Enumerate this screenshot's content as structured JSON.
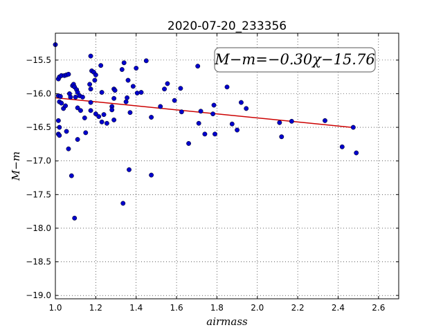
{
  "chart_data": {
    "type": "scatter",
    "title": "2020-07-20_233356",
    "xlabel": "airmass",
    "ylabel": "M−m",
    "xlim": [
      1.0,
      2.7
    ],
    "ylim": [
      -19.05,
      -15.1
    ],
    "x_ticks": [
      1.0,
      1.2,
      1.4,
      1.6,
      1.8,
      2.0,
      2.2,
      2.4,
      2.6
    ],
    "x_tick_labels": [
      "1.0",
      "1.2",
      "1.4",
      "1.6",
      "1.8",
      "2.0",
      "2.2",
      "2.4",
      "2.6"
    ],
    "y_ticks": [
      -15.5,
      -16.0,
      -16.5,
      -17.0,
      -17.5,
      -18.0,
      -18.5,
      -19.0
    ],
    "y_tick_labels": [
      "−15.5",
      "−16.0",
      "−16.5",
      "−17.0",
      "−17.5",
      "−18.0",
      "−18.5",
      "−19.0"
    ],
    "grid": true,
    "annotation": "M−m=−0.30χ−15.76",
    "colors": {
      "points": "#0000cc",
      "fit_line": "#cc0000"
    },
    "fit": {
      "slope": -0.3,
      "intercept": -15.76,
      "x_range": [
        1.0,
        2.47
      ]
    },
    "points": [
      [
        1.0,
        -15.27
      ],
      [
        1.015,
        -15.78
      ],
      [
        1.02,
        -15.75
      ],
      [
        1.03,
        -15.73
      ],
      [
        1.045,
        -15.73
      ],
      [
        1.055,
        -15.72
      ],
      [
        1.065,
        -15.71
      ],
      [
        1.015,
        -16.03
      ],
      [
        1.025,
        -16.04
      ],
      [
        1.02,
        -16.12
      ],
      [
        1.03,
        -16.14
      ],
      [
        1.04,
        -16.22
      ],
      [
        1.05,
        -16.18
      ],
      [
        1.015,
        -16.4
      ],
      [
        1.02,
        -16.5
      ],
      [
        1.015,
        -16.6
      ],
      [
        1.02,
        -16.62
      ],
      [
        1.055,
        -16.56
      ],
      [
        1.07,
        -16.0
      ],
      [
        1.075,
        -16.05
      ],
      [
        1.085,
        -15.88
      ],
      [
        1.09,
        -15.86
      ],
      [
        1.095,
        -15.9
      ],
      [
        1.1,
        -16.05
      ],
      [
        1.105,
        -15.94
      ],
      [
        1.11,
        -15.98
      ],
      [
        1.12,
        -16.03
      ],
      [
        1.135,
        -16.05
      ],
      [
        1.11,
        -16.21
      ],
      [
        1.125,
        -16.25
      ],
      [
        1.065,
        -16.82
      ],
      [
        1.08,
        -17.22
      ],
      [
        1.095,
        -17.85
      ],
      [
        1.11,
        -16.68
      ],
      [
        1.145,
        -16.36
      ],
      [
        1.15,
        -16.58
      ],
      [
        1.175,
        -15.44
      ],
      [
        1.18,
        -15.66
      ],
      [
        1.19,
        -15.68
      ],
      [
        1.195,
        -15.8
      ],
      [
        1.2,
        -15.72
      ],
      [
        1.17,
        -15.86
      ],
      [
        1.175,
        -15.93
      ],
      [
        1.175,
        -16.13
      ],
      [
        1.175,
        -16.25
      ],
      [
        1.2,
        -16.3
      ],
      [
        1.215,
        -16.34
      ],
      [
        1.225,
        -15.58
      ],
      [
        1.23,
        -15.98
      ],
      [
        1.24,
        -16.31
      ],
      [
        1.23,
        -16.42
      ],
      [
        1.255,
        -16.44
      ],
      [
        1.28,
        -16.19
      ],
      [
        1.28,
        -16.24
      ],
      [
        1.29,
        -15.93
      ],
      [
        1.295,
        -15.95
      ],
      [
        1.29,
        -16.07
      ],
      [
        1.29,
        -16.39
      ],
      [
        1.33,
        -15.64
      ],
      [
        1.34,
        -15.54
      ],
      [
        1.35,
        -16.12
      ],
      [
        1.355,
        -16.06
      ],
      [
        1.36,
        -15.8
      ],
      [
        1.37,
        -16.28
      ],
      [
        1.385,
        -15.89
      ],
      [
        1.4,
        -15.62
      ],
      [
        1.405,
        -15.99
      ],
      [
        1.425,
        -15.98
      ],
      [
        1.45,
        -15.51
      ],
      [
        1.475,
        -16.35
      ],
      [
        1.335,
        -17.63
      ],
      [
        1.365,
        -17.13
      ],
      [
        1.475,
        -17.21
      ],
      [
        1.52,
        -16.19
      ],
      [
        1.54,
        -15.93
      ],
      [
        1.555,
        -15.85
      ],
      [
        1.59,
        -16.1
      ],
      [
        1.62,
        -15.92
      ],
      [
        1.625,
        -16.27
      ],
      [
        1.66,
        -16.74
      ],
      [
        1.705,
        -15.59
      ],
      [
        1.71,
        -16.44
      ],
      [
        1.72,
        -16.26
      ],
      [
        1.74,
        -16.6
      ],
      [
        1.78,
        -16.3
      ],
      [
        1.785,
        -16.17
      ],
      [
        1.79,
        -16.6
      ],
      [
        1.85,
        -15.9
      ],
      [
        1.875,
        -16.45
      ],
      [
        1.9,
        -16.54
      ],
      [
        1.92,
        -16.13
      ],
      [
        1.945,
        -16.22
      ],
      [
        2.11,
        -16.43
      ],
      [
        2.12,
        -16.64
      ],
      [
        2.17,
        -16.41
      ],
      [
        2.335,
        -16.4
      ],
      [
        2.42,
        -16.79
      ],
      [
        2.475,
        -16.5
      ],
      [
        2.49,
        -16.88
      ]
    ]
  }
}
